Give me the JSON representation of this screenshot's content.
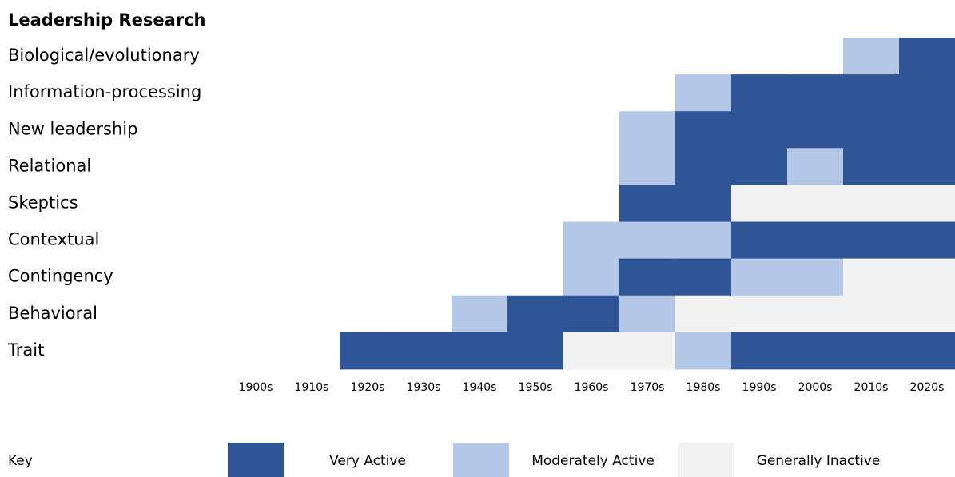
{
  "chart_data": {
    "type": "heatmap",
    "title": "Leadership Research",
    "categories": [
      "1900s",
      "1910s",
      "1920s",
      "1930s",
      "1940s",
      "1950s",
      "1960s",
      "1970s",
      "1980s",
      "1990s",
      "2000s",
      "2010s",
      "2020s"
    ],
    "rows": [
      {
        "name": "Biological/evolutionary",
        "values": [
          null,
          null,
          null,
          null,
          null,
          null,
          null,
          null,
          null,
          null,
          null,
          "Moderately Active",
          "Very Active"
        ]
      },
      {
        "name": "Information-processing",
        "values": [
          null,
          null,
          null,
          null,
          null,
          null,
          null,
          null,
          "Moderately Active",
          "Very Active",
          "Very Active",
          "Very Active",
          "Very Active"
        ]
      },
      {
        "name": "New leadership",
        "values": [
          null,
          null,
          null,
          null,
          null,
          null,
          null,
          "Moderately Active",
          "Very Active",
          "Very Active",
          "Very Active",
          "Very Active",
          "Very Active"
        ]
      },
      {
        "name": "Relational",
        "values": [
          null,
          null,
          null,
          null,
          null,
          null,
          null,
          "Moderately Active",
          "Very Active",
          "Very Active",
          "Moderately Active",
          "Very Active",
          "Very Active"
        ]
      },
      {
        "name": "Skeptics",
        "values": [
          null,
          null,
          null,
          null,
          null,
          null,
          null,
          "Very Active",
          "Very Active",
          "Generally Inactive",
          "Generally Inactive",
          "Generally Inactive",
          "Generally Inactive"
        ]
      },
      {
        "name": "Contextual",
        "values": [
          null,
          null,
          null,
          null,
          null,
          null,
          "Moderately Active",
          "Moderately Active",
          "Moderately Active",
          "Very Active",
          "Very Active",
          "Very Active",
          "Very Active"
        ]
      },
      {
        "name": "Contingency",
        "values": [
          null,
          null,
          null,
          null,
          null,
          null,
          "Moderately Active",
          "Very Active",
          "Very Active",
          "Moderately Active",
          "Moderately Active",
          "Generally Inactive",
          "Generally Inactive"
        ]
      },
      {
        "name": "Behavioral",
        "values": [
          null,
          null,
          null,
          null,
          "Moderately Active",
          "Very Active",
          "Very Active",
          "Moderately Active",
          "Generally Inactive",
          "Generally Inactive",
          "Generally Inactive",
          "Generally Inactive",
          "Generally Inactive"
        ]
      },
      {
        "name": "Trait",
        "values": [
          null,
          null,
          "Very Active",
          "Very Active",
          "Very Active",
          "Very Active",
          "Generally Inactive",
          "Generally Inactive",
          "Moderately Active",
          "Very Active",
          "Very Active",
          "Very Active",
          "Very Active"
        ]
      }
    ],
    "legend_title": "Key",
    "legend": [
      {
        "name": "Very Active",
        "color": "#2f5597"
      },
      {
        "name": "Moderately Active",
        "color": "#b4c7e7"
      },
      {
        "name": "Generally Inactive",
        "color": "#f2f2f2"
      }
    ]
  }
}
